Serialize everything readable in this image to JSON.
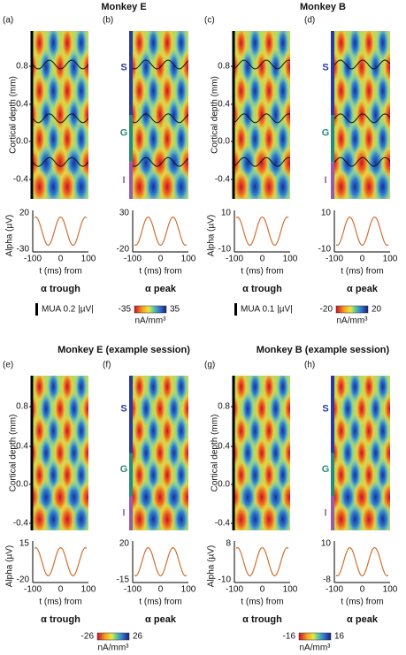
{
  "titles": [
    "Monkey E",
    "Monkey B",
    "Monkey E (example session)",
    "Monkey B (example session)"
  ],
  "panels": [
    {
      "letter": "(a)",
      "depth_ticks": [
        "0.8",
        "0.4",
        "0.0",
        "-0.4"
      ],
      "depth_label": "Cortical depth (mm)",
      "alpha_label": "Alpha (µV)",
      "alpha_ticks": [
        "20",
        "-30"
      ],
      "time_ticks": [
        "-100",
        "0",
        "100"
      ],
      "time_label": "t (ms) from",
      "event": "α trough"
    },
    {
      "letter": "(b)",
      "layers": [
        "S",
        "G",
        "I"
      ],
      "alpha_ticks": [
        "30",
        "-20"
      ],
      "time_ticks": [
        "-100",
        "0",
        "100"
      ],
      "time_label": "t (ms) from",
      "event": "α peak"
    },
    {
      "letter": "(c)",
      "depth_ticks": [
        "0.8",
        "0.4",
        "0.0",
        "-0.4"
      ],
      "depth_label": "Cortical depth (mm)",
      "alpha_label": "Alpha (µV)",
      "alpha_ticks": [
        "10",
        "-10"
      ],
      "time_ticks": [
        "-100",
        "0",
        "100"
      ],
      "time_label": "t (ms) from",
      "event": "α trough"
    },
    {
      "letter": "(d)",
      "layers": [
        "S",
        "G",
        "I"
      ],
      "alpha_ticks": [
        "10",
        "-10"
      ],
      "time_ticks": [
        "-100",
        "0",
        "100"
      ],
      "time_label": "t (ms) from",
      "event": "α peak"
    },
    {
      "letter": "(e)",
      "depth_ticks": [
        "0.8",
        "0.4",
        "0.0",
        "-0.4"
      ],
      "depth_label": "Cortical depth (mm)",
      "alpha_label": "Alpha (µV)",
      "alpha_ticks": [
        "15",
        "-20"
      ],
      "time_ticks": [
        "-100",
        "0",
        "100"
      ],
      "time_label": "t (ms) from",
      "event": "α trough"
    },
    {
      "letter": "(f)",
      "layers": [
        "S",
        "G",
        "I"
      ],
      "alpha_ticks": [
        "20",
        "-15"
      ],
      "time_ticks": [
        "-100",
        "0",
        "100"
      ],
      "time_label": "t (ms) from",
      "event": "α peak"
    },
    {
      "letter": "(g)",
      "depth_ticks": [
        "0.8",
        "0.4",
        "0.0",
        "-0.4"
      ],
      "depth_label": "Cortical depth (mm)",
      "alpha_label": "Alpha (µV)",
      "alpha_ticks": [
        "8",
        "-10"
      ],
      "time_ticks": [
        "-100",
        "0",
        "100"
      ],
      "time_label": "t (ms) from",
      "event": "α trough"
    },
    {
      "letter": "(h)",
      "layers": [
        "S",
        "G",
        "I"
      ],
      "alpha_ticks": [
        "10",
        "-8"
      ],
      "time_ticks": [
        "-100",
        "0",
        "100"
      ],
      "time_label": "t (ms) from",
      "event": "α peak"
    }
  ],
  "scales": [
    {
      "mua": "MUA 0.2 |µV|"
    },
    {
      "colorbar": [
        "-35",
        "35"
      ],
      "unit": "nA/mm³"
    },
    {
      "mua": "MUA 0.1 |µV|"
    },
    {
      "colorbar": [
        "-20",
        "20"
      ],
      "unit": "nA/mm³"
    },
    {
      "colorbar": [
        "-26",
        "26"
      ],
      "unit": "nA/mm³"
    },
    {
      "colorbar": [
        "-16",
        "16"
      ],
      "unit": "nA/mm³"
    }
  ]
}
